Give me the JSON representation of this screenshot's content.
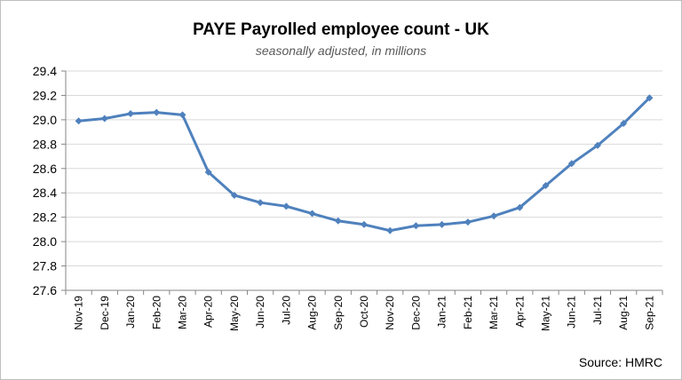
{
  "chart_data": {
    "type": "line",
    "title": "PAYE Payrolled employee count - UK",
    "subtitle": "seasonally adjusted, in millions",
    "source": "Source: HMRC",
    "xlabel": "",
    "ylabel": "",
    "ylim": [
      27.6,
      29.4
    ],
    "yticks": [
      "27.6",
      "27.8",
      "28.0",
      "28.2",
      "28.4",
      "28.6",
      "28.8",
      "29.0",
      "29.2",
      "29.4"
    ],
    "grid": true,
    "categories": [
      "Nov-19",
      "Dec-19",
      "Jan-20",
      "Feb-20",
      "Mar-20",
      "Apr-20",
      "May-20",
      "Jun-20",
      "Jul-20",
      "Aug-20",
      "Sep-20",
      "Oct-20",
      "Nov-20",
      "Dec-20",
      "Jan-21",
      "Feb-21",
      "Mar-21",
      "Apr-21",
      "May-21",
      "Jun-21",
      "Jul-21",
      "Aug-21",
      "Sep-21"
    ],
    "series": [
      {
        "color": "#4f81bd",
        "values": [
          28.99,
          29.01,
          29.05,
          29.06,
          29.04,
          28.57,
          28.38,
          28.32,
          28.29,
          28.23,
          28.17,
          28.14,
          28.09,
          28.13,
          28.14,
          28.16,
          28.21,
          28.28,
          28.46,
          28.64,
          28.79,
          28.97,
          29.18
        ]
      }
    ]
  }
}
